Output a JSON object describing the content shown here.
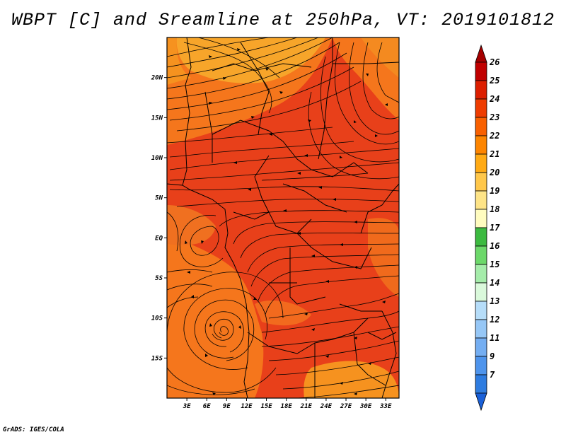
{
  "title": "WBPT [C] and Sreamline at 250hPa, VT: 2019101812",
  "credit": "GrADS: IGES/COLA",
  "map": {
    "variable": "Wet-bulb potential temperature",
    "level": "250hPa",
    "lat_labels": [
      "20N",
      "15N",
      "10N",
      "5N",
      "EQ",
      "5S",
      "10S",
      "15S"
    ],
    "lat_values": [
      20,
      15,
      10,
      5,
      0,
      -5,
      -10,
      -15
    ],
    "lon_labels": [
      "3E",
      "6E",
      "9E",
      "12E",
      "15E",
      "18E",
      "21E",
      "24E",
      "27E",
      "30E",
      "33E"
    ],
    "lon_values": [
      3,
      6,
      9,
      12,
      15,
      18,
      21,
      24,
      27,
      30,
      33
    ],
    "lon_range": [
      0,
      35
    ],
    "lat_range": [
      -20,
      25
    ]
  },
  "colorbar": {
    "labels": [
      "26",
      "25",
      "24",
      "23",
      "22",
      "21",
      "20",
      "19",
      "18",
      "17",
      "16",
      "15",
      "14",
      "13",
      "12",
      "11",
      "9",
      "7"
    ],
    "colors": [
      "#a50000",
      "#c00000",
      "#dc1e00",
      "#ee3c00",
      "#f86000",
      "#fd8500",
      "#ffaa14",
      "#ffc74a",
      "#fee487",
      "#fffcbf",
      "#3cba40",
      "#6cd86a",
      "#a5ecaa",
      "#daf9db",
      "#b6ddf9",
      "#96c7f6",
      "#74aef2",
      "#4e94ec",
      "#2e7ce0",
      "#1a60d8"
    ]
  },
  "colors": {
    "field_main": "#e8401a",
    "field_warm": "#f5761c",
    "field_yellow": "#f7a52a",
    "streamline": "#000000"
  }
}
